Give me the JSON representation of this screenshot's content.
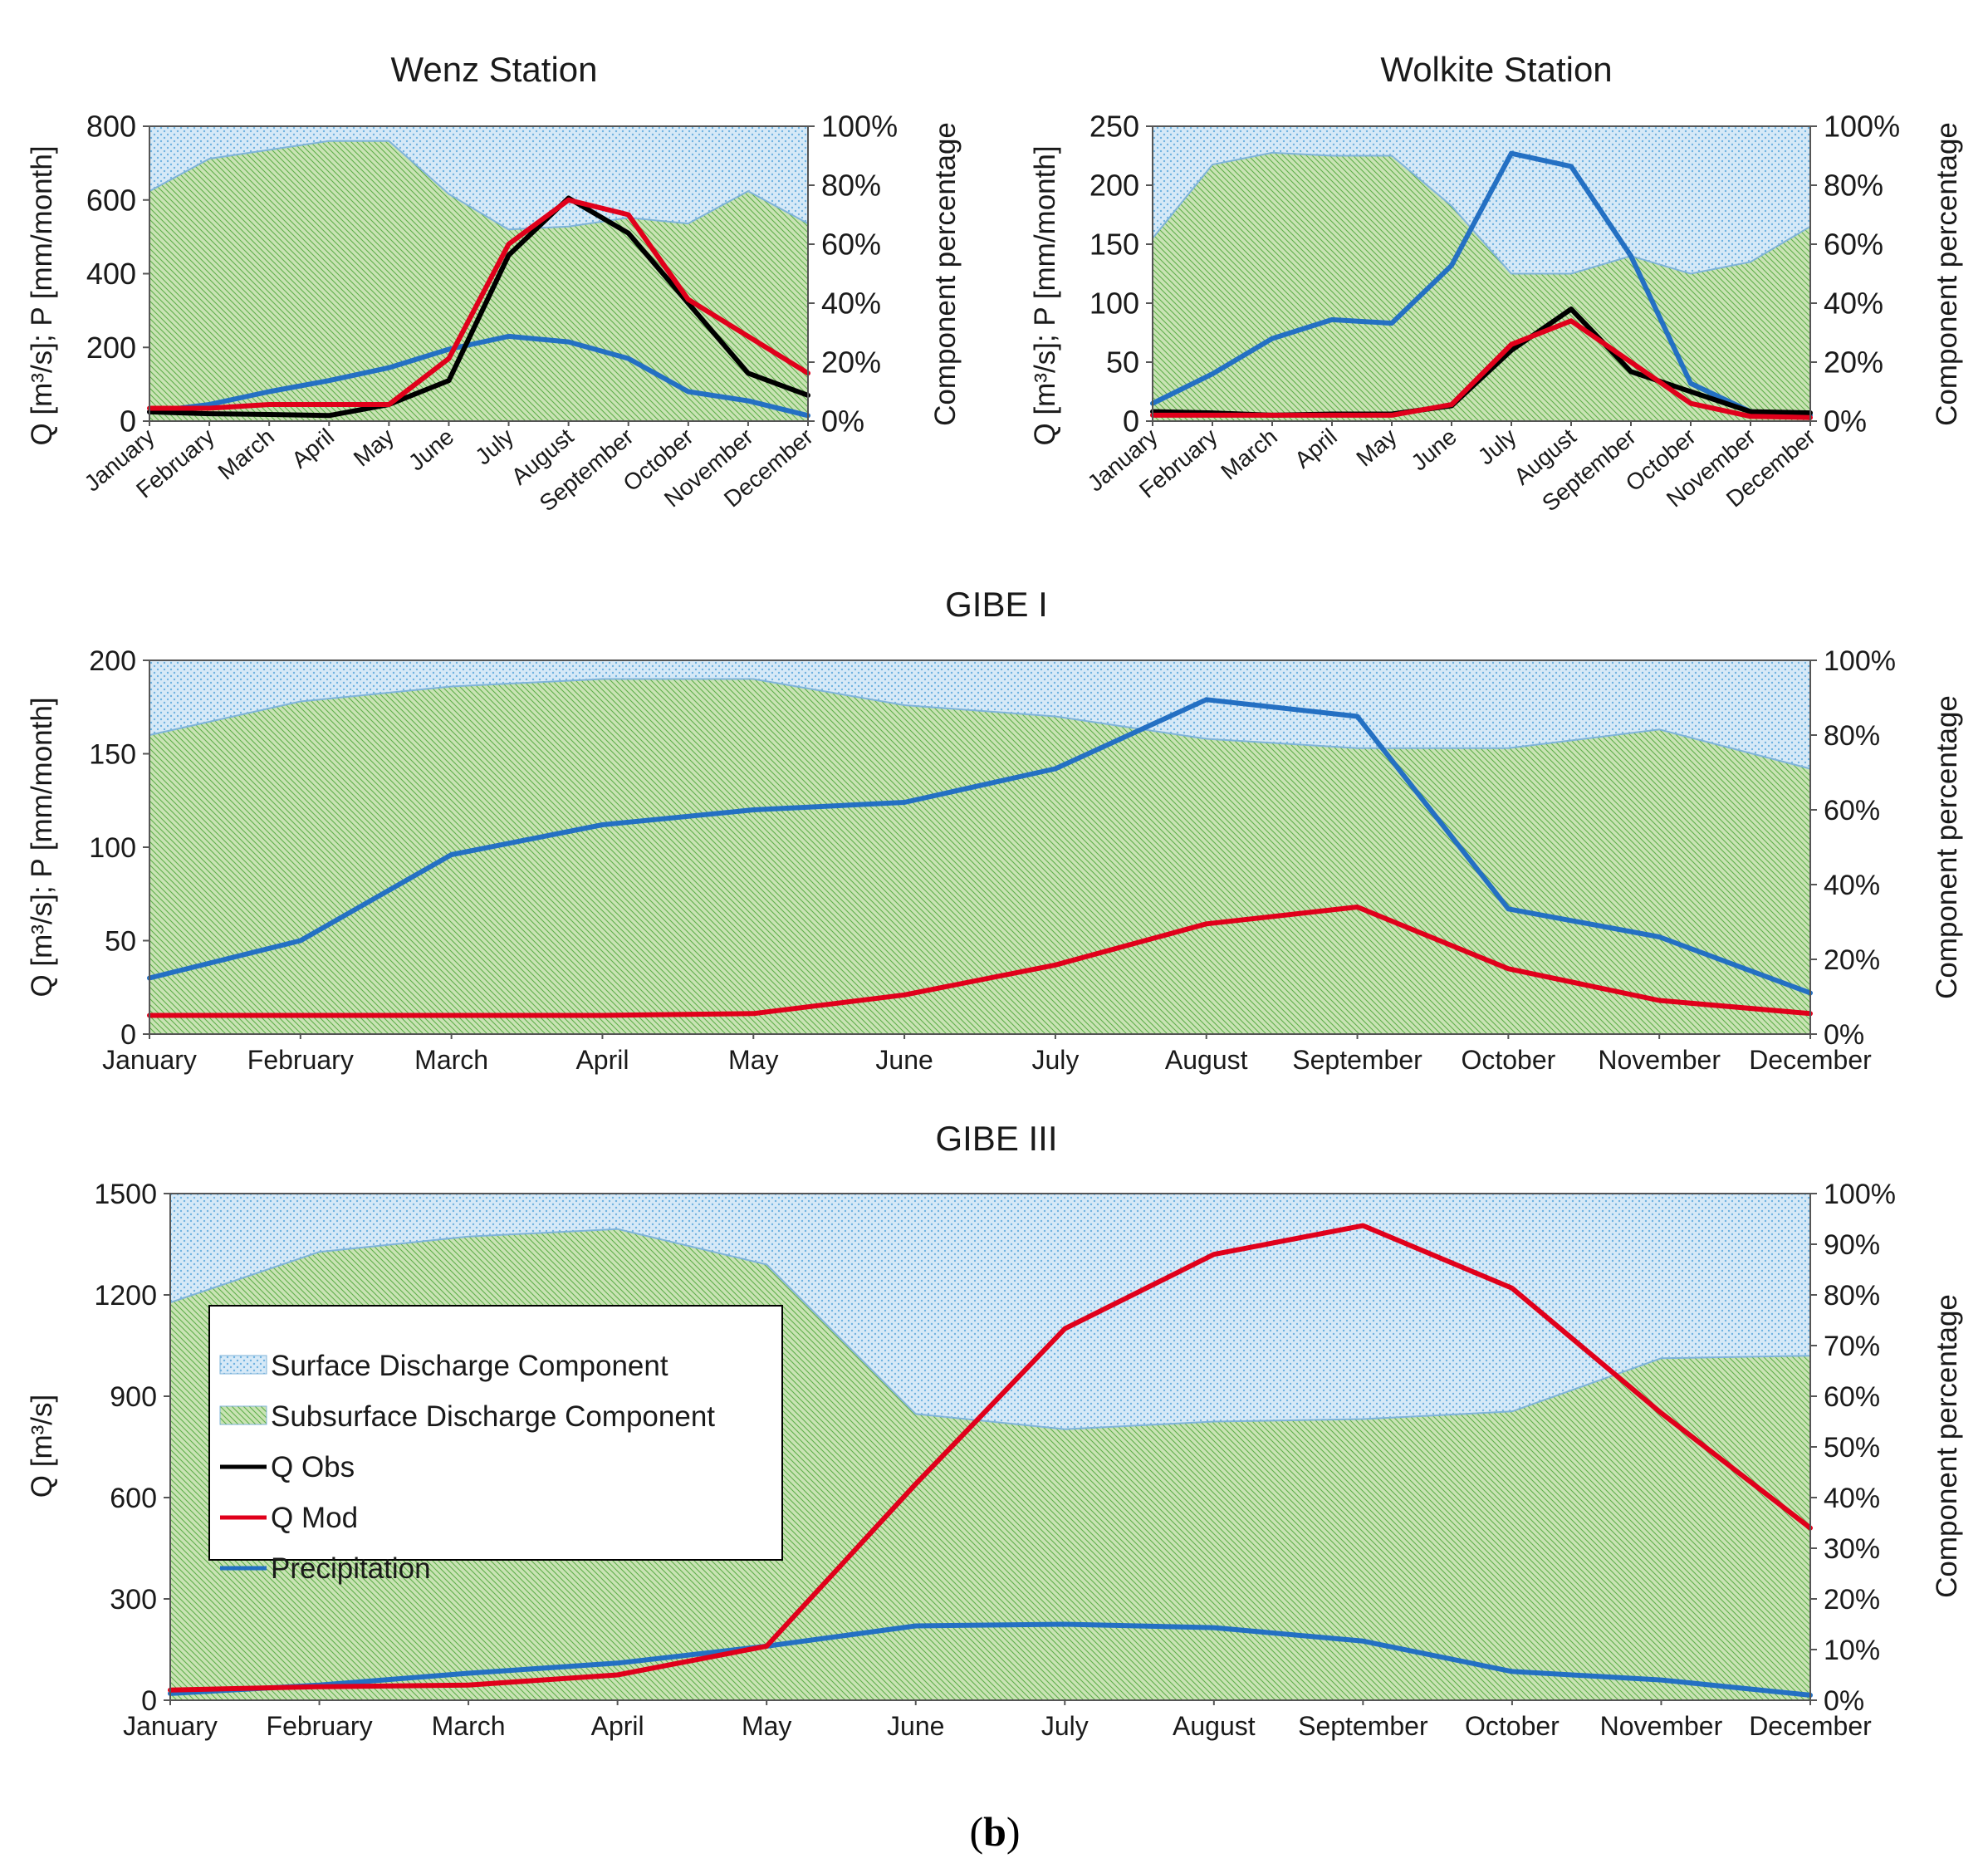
{
  "figure": {
    "caption_open": "(",
    "caption_letter": "b",
    "caption_close": ")"
  },
  "colors": {
    "surface_fill": "#d6e9f7",
    "surface_dot": "#6fb2e0",
    "subsurface_fill": "#c9e3b4",
    "subsurface_hatch": "#5fae4a",
    "boundary": "#7fb3d9",
    "q_obs": "#000000",
    "q_mod": "#e0001b",
    "precip": "#2470c3"
  },
  "legend": {
    "surface": "Surface Discharge Component",
    "subsurface": "Subsurface Discharge Component",
    "q_obs": "Q Obs",
    "q_mod": "Q Mod",
    "precip": "Precipitation"
  },
  "chart_data": [
    {
      "id": "wenz",
      "type": "line",
      "title": "Wenz Station",
      "categories": [
        "January",
        "February",
        "March",
        "April",
        "May",
        "June",
        "July",
        "August",
        "September",
        "October",
        "November",
        "December"
      ],
      "ylabel_left": "Q [m³/s]; P [mm/month]",
      "ylabel_right": "Component percentage",
      "ylim_left": [
        0,
        800
      ],
      "yticks_left": [
        "0",
        "200",
        "400",
        "600",
        "800"
      ],
      "ylim_right": [
        0,
        100
      ],
      "yticks_right": [
        "0%",
        "20%",
        "40%",
        "60%",
        "80%",
        "100%"
      ],
      "x_tick_rotation": "rotated",
      "series": [
        {
          "name": "Q Obs",
          "values": [
            25,
            20,
            18,
            15,
            45,
            110,
            450,
            605,
            510,
            320,
            130,
            70
          ]
        },
        {
          "name": "Q Mod",
          "values": [
            35,
            35,
            45,
            45,
            45,
            170,
            480,
            600,
            560,
            330,
            230,
            130
          ]
        },
        {
          "name": "Precipitation",
          "values": [
            25,
            45,
            80,
            110,
            145,
            195,
            230,
            215,
            170,
            80,
            55,
            15
          ]
        }
      ],
      "subsurface_percent": [
        78,
        89,
        92,
        95,
        95,
        77,
        65,
        66,
        69,
        67,
        78,
        67
      ]
    },
    {
      "id": "wolkite",
      "type": "line",
      "title": "Wolkite Station",
      "categories": [
        "January",
        "February",
        "March",
        "April",
        "May",
        "June",
        "July",
        "August",
        "September",
        "October",
        "November",
        "December"
      ],
      "ylabel_left": "Q [m³/s]; P [mm/month]",
      "ylabel_right": "Component percentage",
      "ylim_left": [
        0,
        250
      ],
      "yticks_left": [
        "0",
        "50",
        "100",
        "150",
        "200",
        "250"
      ],
      "ylim_right": [
        0,
        100
      ],
      "yticks_right": [
        "0%",
        "20%",
        "40%",
        "60%",
        "80%",
        "100%"
      ],
      "x_tick_rotation": "rotated",
      "series": [
        {
          "name": "Q Obs",
          "values": [
            8,
            7,
            5,
            6,
            6,
            13,
            60,
            95,
            42,
            25,
            8,
            7
          ]
        },
        {
          "name": "Q Mod",
          "values": [
            5,
            5,
            5,
            5,
            5,
            14,
            65,
            85,
            50,
            15,
            4,
            3
          ]
        },
        {
          "name": "Precipitation",
          "values": [
            15,
            40,
            70,
            86,
            83,
            132,
            227,
            216,
            140,
            32,
            8,
            5
          ]
        }
      ],
      "subsurface_percent": [
        62,
        87,
        91,
        90,
        90,
        73,
        50,
        50,
        56,
        50,
        54,
        66
      ]
    },
    {
      "id": "gibe1",
      "type": "line",
      "title": "GIBE I",
      "categories": [
        "January",
        "February",
        "March",
        "April",
        "May",
        "June",
        "July",
        "August",
        "September",
        "October",
        "November",
        "December"
      ],
      "ylabel_left": "Q [m³/s]; P [mm/month]",
      "ylabel_right": "Component percentage",
      "ylim_left": [
        0,
        200
      ],
      "yticks_left": [
        "0",
        "50",
        "100",
        "150",
        "200"
      ],
      "ylim_right": [
        0,
        100
      ],
      "yticks_right": [
        "0%",
        "20%",
        "40%",
        "60%",
        "80%",
        "100%"
      ],
      "x_tick_rotation": "none",
      "series": [
        {
          "name": "Q Mod",
          "values": [
            10,
            10,
            10,
            10,
            11,
            21,
            37,
            59,
            68,
            35,
            18,
            11
          ]
        },
        {
          "name": "Precipitation",
          "values": [
            30,
            50,
            96,
            112,
            120,
            124,
            142,
            179,
            170,
            67,
            52,
            22
          ]
        }
      ],
      "subsurface_percent": [
        80,
        89,
        93,
        95,
        95,
        88,
        85,
        79,
        76.5,
        76.5,
        81.5,
        71
      ]
    },
    {
      "id": "gibe3",
      "type": "line",
      "title": "GIBE III",
      "categories": [
        "January",
        "February",
        "March",
        "April",
        "May",
        "June",
        "July",
        "August",
        "September",
        "October",
        "November",
        "December"
      ],
      "ylabel_left": "Q [m³/s]",
      "ylabel_right": "Component percentage",
      "ylim_left": [
        0,
        1500
      ],
      "yticks_left": [
        "0",
        "300",
        "600",
        "900",
        "1200",
        "1500"
      ],
      "ylim_right": [
        0,
        100
      ],
      "yticks_right": [
        "0%",
        "10%",
        "20%",
        "30%",
        "40%",
        "50%",
        "60%",
        "70%",
        "80%",
        "90%",
        "100%"
      ],
      "x_tick_rotation": "none",
      "series": [
        {
          "name": "Q Mod",
          "values": [
            30,
            40,
            45,
            75,
            160,
            640,
            1100,
            1320,
            1405,
            1220,
            850,
            510
          ]
        },
        {
          "name": "Precipitation",
          "values": [
            20,
            45,
            80,
            110,
            160,
            220,
            225,
            215,
            175,
            85,
            60,
            15
          ]
        }
      ],
      "subsurface_percent": [
        78.5,
        88.5,
        91.5,
        93,
        86,
        56.5,
        53.5,
        55,
        55.5,
        57,
        67.5,
        68
      ]
    }
  ]
}
